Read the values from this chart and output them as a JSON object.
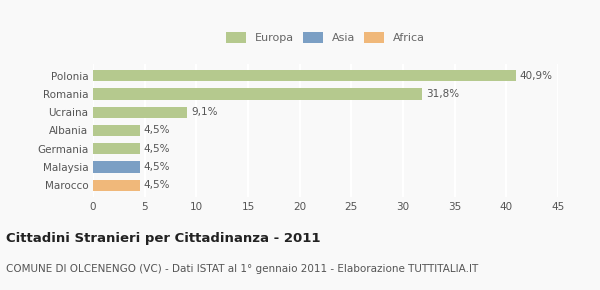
{
  "categories": [
    "Polonia",
    "Romania",
    "Ucraina",
    "Albania",
    "Germania",
    "Malaysia",
    "Marocco"
  ],
  "values": [
    40.9,
    31.8,
    9.1,
    4.5,
    4.5,
    4.5,
    4.5
  ],
  "labels": [
    "40,9%",
    "31,8%",
    "9,1%",
    "4,5%",
    "4,5%",
    "4,5%",
    "4,5%"
  ],
  "bar_colors": [
    "#b5c98e",
    "#b5c98e",
    "#b5c98e",
    "#b5c98e",
    "#b5c98e",
    "#7b9fc4",
    "#f0b87a"
  ],
  "legend": [
    {
      "label": "Europa",
      "color": "#b5c98e"
    },
    {
      "label": "Asia",
      "color": "#7b9fc4"
    },
    {
      "label": "Africa",
      "color": "#f0b87a"
    }
  ],
  "xlim": [
    0,
    45
  ],
  "xticks": [
    0,
    5,
    10,
    15,
    20,
    25,
    30,
    35,
    40,
    45
  ],
  "title": "Cittadini Stranieri per Cittadinanza - 2011",
  "subtitle": "COMUNE DI OLCENENGO (VC) - Dati ISTAT al 1° gennaio 2011 - Elaborazione TUTTITALIA.IT",
  "background_color": "#f9f9f9",
  "grid_color": "#ffffff",
  "title_fontsize": 9.5,
  "subtitle_fontsize": 7.5,
  "label_fontsize": 7.5,
  "tick_fontsize": 7.5,
  "legend_fontsize": 8.0
}
